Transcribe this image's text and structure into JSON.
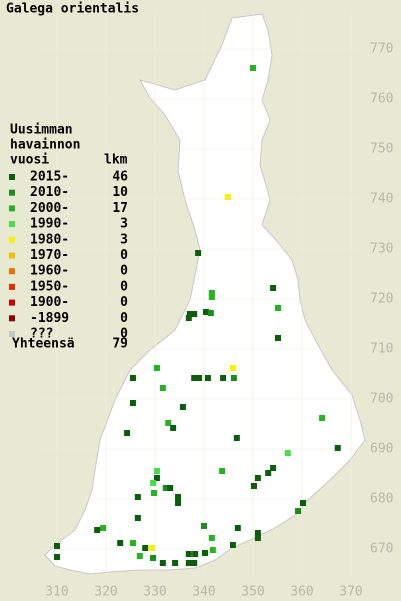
{
  "title": "Galega orientalis",
  "legend": {
    "title": [
      "Uusimman",
      "havainnon",
      "vuosi"
    ],
    "count_header": "lkm",
    "rows": [
      {
        "label": "2015-",
        "count": 46,
        "color": "#0b5e0b"
      },
      {
        "label": "2010-",
        "count": 10,
        "color": "#1c8c1c"
      },
      {
        "label": "2000-",
        "count": 17,
        "color": "#22b422"
      },
      {
        "label": "1990-",
        "count": 3,
        "color": "#44e044"
      },
      {
        "label": "1980-",
        "count": 3,
        "color": "#f4f400"
      },
      {
        "label": "1970-",
        "count": 0,
        "color": "#f0c000"
      },
      {
        "label": "1960-",
        "count": 0,
        "color": "#f07000"
      },
      {
        "label": "1950-",
        "count": 0,
        "color": "#e03000"
      },
      {
        "label": "1900-",
        "count": 0,
        "color": "#c80000"
      },
      {
        "label": "-1899",
        "count": 0,
        "color": "#900000"
      },
      {
        "label": "???",
        "count": 0,
        "color": "#c8c8c8"
      }
    ],
    "total_label": "Yhteensä",
    "total": 79
  },
  "xticks": [
    310,
    320,
    330,
    340,
    350,
    360,
    370
  ],
  "yticks": [
    770,
    760,
    750,
    740,
    730,
    720,
    710,
    700,
    690,
    680,
    670
  ],
  "observations": [
    {
      "e": 350.0,
      "n": 766.2,
      "period": 2
    },
    {
      "e": 344.9,
      "n": 740.4,
      "period": 4
    },
    {
      "e": 338.8,
      "n": 729.2,
      "period": 0
    },
    {
      "e": 341.6,
      "n": 721.2,
      "period": 2
    },
    {
      "e": 341.6,
      "n": 720.4,
      "period": 2
    },
    {
      "e": 354.1,
      "n": 722.2,
      "period": 0
    },
    {
      "e": 355.1,
      "n": 718.2,
      "period": 2
    },
    {
      "e": 337.1,
      "n": 717.0,
      "period": 0
    },
    {
      "e": 336.9,
      "n": 716.2,
      "period": 0
    },
    {
      "e": 338.0,
      "n": 717.0,
      "period": 0
    },
    {
      "e": 340.4,
      "n": 717.4,
      "period": 0
    },
    {
      "e": 341.4,
      "n": 717.2,
      "period": 1
    },
    {
      "e": 355.1,
      "n": 712.2,
      "period": 0
    },
    {
      "e": 345.9,
      "n": 706.2,
      "period": 4
    },
    {
      "e": 346.1,
      "n": 704.2,
      "period": 1
    },
    {
      "e": 325.5,
      "n": 704.2,
      "period": 0
    },
    {
      "e": 330.4,
      "n": 706.2,
      "period": 2
    },
    {
      "e": 338.0,
      "n": 704.2,
      "period": 0
    },
    {
      "e": 339.0,
      "n": 704.2,
      "period": 0
    },
    {
      "e": 340.8,
      "n": 704.2,
      "period": 0
    },
    {
      "e": 343.9,
      "n": 704.2,
      "period": 0
    },
    {
      "e": 331.6,
      "n": 702.2,
      "period": 2
    },
    {
      "e": 325.5,
      "n": 699.2,
      "period": 0
    },
    {
      "e": 335.7,
      "n": 698.4,
      "period": 0
    },
    {
      "e": 332.7,
      "n": 695.2,
      "period": 2
    },
    {
      "e": 333.7,
      "n": 694.2,
      "period": 0
    },
    {
      "e": 324.3,
      "n": 693.2,
      "period": 0
    },
    {
      "e": 346.7,
      "n": 692.2,
      "period": 0
    },
    {
      "e": 364.1,
      "n": 696.2,
      "period": 2
    },
    {
      "e": 367.3,
      "n": 690.2,
      "period": 0
    },
    {
      "e": 357.1,
      "n": 689.2,
      "period": 3
    },
    {
      "e": 330.4,
      "n": 685.6,
      "period": 3
    },
    {
      "e": 330.4,
      "n": 684.2,
      "period": 0
    },
    {
      "e": 329.6,
      "n": 683.2,
      "period": 3
    },
    {
      "e": 329.8,
      "n": 681.2,
      "period": 2
    },
    {
      "e": 332.2,
      "n": 682.2,
      "period": 1
    },
    {
      "e": 333.1,
      "n": 682.2,
      "period": 0
    },
    {
      "e": 334.7,
      "n": 680.4,
      "period": 0
    },
    {
      "e": 334.7,
      "n": 679.2,
      "period": 0
    },
    {
      "e": 343.7,
      "n": 685.6,
      "period": 2
    },
    {
      "e": 354.1,
      "n": 686.2,
      "period": 0
    },
    {
      "e": 353.1,
      "n": 685.2,
      "period": 0
    },
    {
      "e": 351.0,
      "n": 684.2,
      "period": 0
    },
    {
      "e": 350.2,
      "n": 682.6,
      "period": 0
    },
    {
      "e": 360.2,
      "n": 679.2,
      "period": 0
    },
    {
      "e": 359.2,
      "n": 677.6,
      "period": 1
    },
    {
      "e": 326.5,
      "n": 680.4,
      "period": 0
    },
    {
      "e": 319.4,
      "n": 674.2,
      "period": 2
    },
    {
      "e": 318.2,
      "n": 673.8,
      "period": 0
    },
    {
      "e": 326.5,
      "n": 676.2,
      "period": 0
    },
    {
      "e": 340.0,
      "n": 674.6,
      "period": 1
    },
    {
      "e": 346.9,
      "n": 674.2,
      "period": 0
    },
    {
      "e": 351.0,
      "n": 673.2,
      "period": 0
    },
    {
      "e": 351.0,
      "n": 672.2,
      "period": 0
    },
    {
      "e": 341.6,
      "n": 672.2,
      "period": 2
    },
    {
      "e": 310.0,
      "n": 670.6,
      "period": 0
    },
    {
      "e": 310.0,
      "n": 668.4,
      "period": 0
    },
    {
      "e": 325.5,
      "n": 671.2,
      "period": 2
    },
    {
      "e": 322.9,
      "n": 671.2,
      "period": 0
    },
    {
      "e": 328.0,
      "n": 670.2,
      "period": 0
    },
    {
      "e": 329.4,
      "n": 670.2,
      "period": 4
    },
    {
      "e": 326.9,
      "n": 668.6,
      "period": 2
    },
    {
      "e": 329.6,
      "n": 668.2,
      "period": 1
    },
    {
      "e": 336.9,
      "n": 669.0,
      "period": 0
    },
    {
      "e": 338.2,
      "n": 669.0,
      "period": 0
    },
    {
      "e": 340.2,
      "n": 669.2,
      "period": 0
    },
    {
      "e": 331.6,
      "n": 667.2,
      "period": 0
    },
    {
      "e": 334.1,
      "n": 667.2,
      "period": 0
    },
    {
      "e": 336.9,
      "n": 667.2,
      "period": 0
    },
    {
      "e": 338.0,
      "n": 667.2,
      "period": 0
    },
    {
      "e": 341.8,
      "n": 669.8,
      "period": 2
    },
    {
      "e": 345.9,
      "n": 670.8,
      "period": 0
    }
  ]
}
